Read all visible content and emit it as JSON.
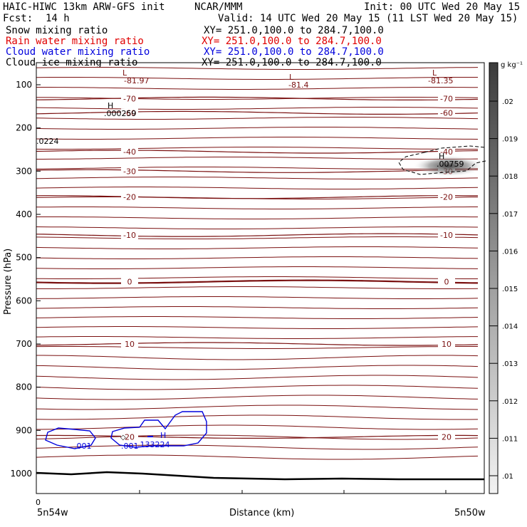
{
  "header": {
    "title": "HAIC-HIWC 13km ARW-GFS init",
    "center": "NCAR/MMM",
    "init": "Init: 00 UTC Wed 20 May 15",
    "fcst_label": "Fcst:",
    "fcst_value": "14 h",
    "valid": "Valid: 14 UTC Wed 20 May 15 (11 LST Wed 20 May 15)",
    "fields": [
      {
        "name": "Snow mixing ratio",
        "xy": "XY= 251.0,100.0 to 284.7,100.0",
        "color": "#000000"
      },
      {
        "name": "Rain water mixing ratio",
        "xy": "XY= 251.0,100.0 to 284.7,100.0",
        "color": "#e00000"
      },
      {
        "name": "Cloud water mixing ratio",
        "xy": "XY= 251.0,100.0 to 284.7,100.0",
        "color": "#0000dd"
      },
      {
        "name": "Cloud ice mixing ratio",
        "xy": "XY= 251.0,100.0 to 284.7,100.0",
        "color": "#000000"
      }
    ]
  },
  "chart_data": {
    "type": "cross-section contour",
    "xlabel": "Distance (km)",
    "ylabel": "Pressure (hPa)",
    "x_left_label": "5n54w",
    "x_right_label": "5n50w",
    "x_origin_tick": "0",
    "y_ticks": [
      100,
      200,
      300,
      400,
      500,
      600,
      700,
      800,
      900,
      1000
    ],
    "ylim": [
      50,
      1050
    ],
    "colorbar": {
      "unit": "g kg⁻¹",
      "ticks": [
        ".02",
        ".019",
        ".018",
        ".017",
        ".016",
        ".015",
        ".014",
        ".013",
        ".012",
        ".011",
        ".01"
      ]
    },
    "temperature_contours": [
      {
        "label": "-70",
        "p": 132
      },
      {
        "label": "-60",
        "p": 165
      },
      {
        "label": "-40",
        "p": 255
      },
      {
        "label": "-30",
        "p": 300
      },
      {
        "label": "-20",
        "p": 360
      },
      {
        "label": "-10",
        "p": 448
      },
      {
        "label": "0",
        "p": 556
      },
      {
        "label": "10",
        "p": 700
      },
      {
        "label": "20",
        "p": 915
      }
    ],
    "annotations": [
      {
        "text": "L",
        "value": "-81.97"
      },
      {
        "text": "L",
        "value": "-81.4"
      },
      {
        "text": "L",
        "value": "-81.35"
      },
      {
        "text": "H",
        "value": ".000259"
      },
      {
        "text": "",
        "value": ".0224"
      },
      {
        "text": "H",
        "value": ".00759"
      },
      {
        "text": "H",
        "value": ".133224"
      }
    ],
    "cloud_water_labels": [
      ".001",
      ".001"
    ],
    "colors": {
      "isotherm": "#7a1010",
      "cloud_water": "#0000dd",
      "cloud_ice": "#000000",
      "surface": "#000000"
    }
  }
}
